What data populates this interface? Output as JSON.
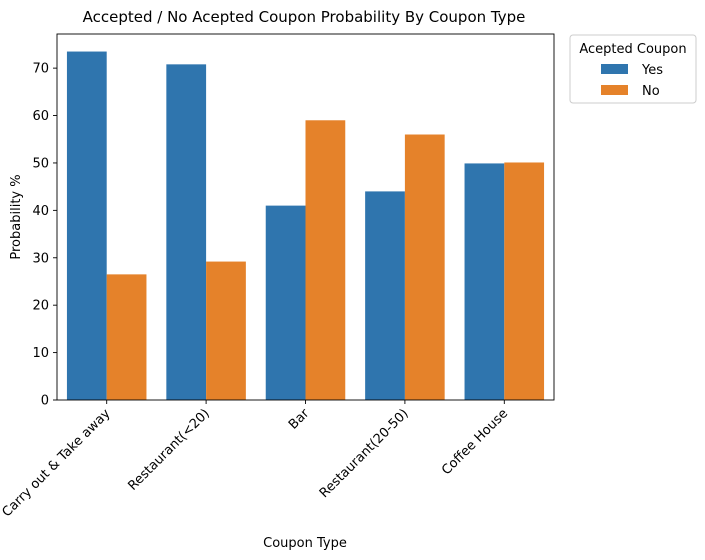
{
  "chart_data": {
    "type": "bar",
    "title": "Accepted / No Acepted Coupon Probability By Coupon Type",
    "xlabel": "Coupon Type",
    "ylabel": "Probability %",
    "ylim": [
      0,
      77.2
    ],
    "yticks": [
      0,
      10,
      20,
      30,
      40,
      50,
      60,
      70
    ],
    "grid": false,
    "legend_title": "Acepted Coupon",
    "legend_position": "outside-top-right",
    "categories": [
      "Carry out & Take away",
      "Restaurant(<20)",
      "Bar",
      "Restaurant(20-50)",
      "Coffee House"
    ],
    "series": [
      {
        "name": "Yes",
        "color": "#2f75ae",
        "values": [
          73.5,
          70.8,
          41.0,
          44.0,
          49.9
        ]
      },
      {
        "name": "No",
        "color": "#e5822a",
        "values": [
          26.5,
          29.2,
          59.0,
          56.0,
          50.1
        ]
      }
    ]
  }
}
